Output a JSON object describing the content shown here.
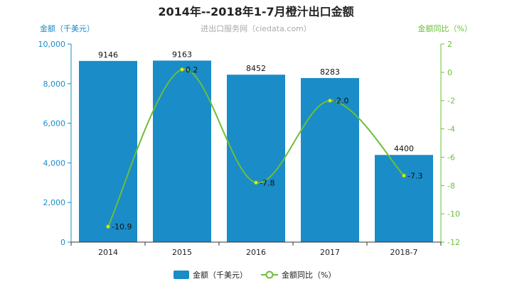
{
  "chart_data": {
    "type": "bar",
    "title": "2014年--2018年1-7月橙汁出口金额",
    "subtitle": "进出口服务网（ciedata.com）",
    "categories": [
      "2014",
      "2015",
      "2016",
      "2017",
      "2018-7"
    ],
    "series": [
      {
        "name": "金额（千美元）",
        "type": "bar",
        "axis": "left",
        "color": "#1a8cc8",
        "values": [
          9146,
          9163,
          8452,
          8283,
          4400
        ],
        "labels": [
          "9146",
          "9163",
          "8452",
          "8283",
          "4400"
        ]
      },
      {
        "name": "金额同比（%）",
        "type": "line",
        "axis": "right",
        "color": "#6bbf3a",
        "values": [
          -10.9,
          0.2,
          -7.8,
          -2.0,
          -7.3
        ],
        "labels": [
          "-10.9",
          "0.2",
          "-7.8",
          "-2.0",
          "-7.3"
        ]
      }
    ],
    "y_left": {
      "label": "金额（千美元）",
      "min": 0,
      "max": 10000,
      "ticks": [
        0,
        2000,
        4000,
        6000,
        8000,
        10000
      ],
      "tick_labels": [
        "0",
        "2,000",
        "4,000",
        "6,000",
        "8,000",
        "10,000"
      ],
      "color": "#1a8cc8"
    },
    "y_right": {
      "label": "金额同比（%）",
      "min": -12,
      "max": 2,
      "ticks": [
        -12,
        -10,
        -8,
        -6,
        -4,
        -2,
        0,
        2
      ],
      "tick_labels": [
        "-12",
        "-10",
        "-8",
        "-6",
        "-4",
        "-2",
        "0",
        "2"
      ],
      "color": "#6bbf3a"
    },
    "legend_position": "bottom",
    "grid": false
  }
}
